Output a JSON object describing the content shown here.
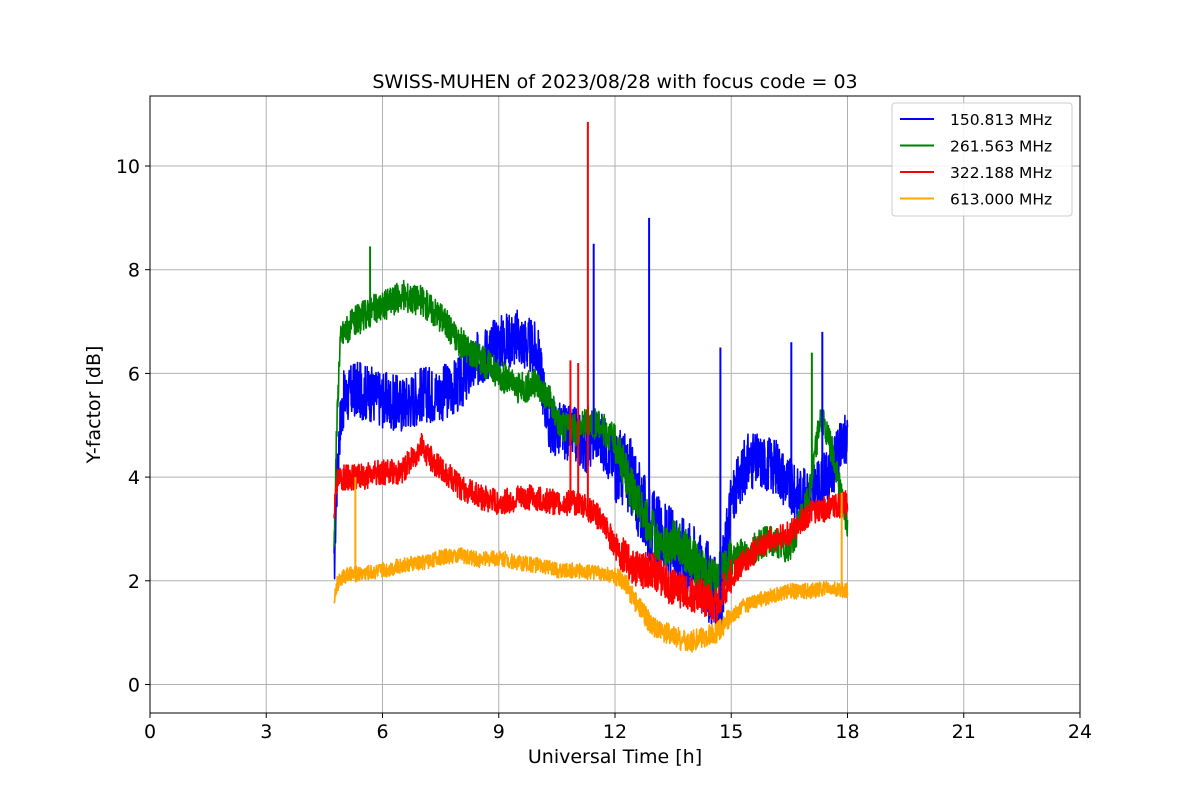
{
  "chart_data": {
    "type": "line",
    "title": "SWISS-MUHEN of 2023/08/28 with focus code = 03",
    "xlabel": "Universal Time [h]",
    "ylabel": "Y-factor [dB]",
    "xlim": [
      0,
      24
    ],
    "ylim": [
      -0.55,
      11.35
    ],
    "xticks": [
      0,
      3,
      6,
      9,
      12,
      15,
      18,
      21,
      24
    ],
    "yticks": [
      0,
      2,
      4,
      6,
      8,
      10
    ],
    "grid": true,
    "legend_position": "top-right",
    "series": [
      {
        "name": "150.813 MHz",
        "color": "#0000ff",
        "x": [
          4.75,
          4.8,
          4.9,
          5.0,
          5.3,
          5.7,
          6.0,
          6.5,
          7.0,
          7.5,
          8.0,
          8.5,
          9.0,
          9.5,
          10.0,
          10.3,
          10.6,
          11.0,
          11.3,
          11.5,
          12.0,
          12.4,
          12.8,
          13.2,
          13.6,
          14.0,
          14.4,
          14.7,
          15.0,
          15.4,
          15.8,
          16.2,
          16.6,
          17.0,
          17.5,
          18.0
        ],
        "y": [
          2.1,
          3.5,
          5.0,
          5.5,
          5.7,
          5.6,
          5.5,
          5.4,
          5.6,
          5.6,
          5.8,
          6.3,
          6.6,
          6.7,
          6.4,
          5.0,
          4.9,
          4.8,
          4.6,
          4.9,
          4.3,
          4.0,
          3.2,
          2.8,
          2.6,
          2.4,
          2.0,
          1.5,
          3.5,
          4.3,
          4.3,
          4.2,
          3.7,
          3.6,
          4.0,
          4.8
        ]
      },
      {
        "name": "261.563 MHz",
        "color": "#008000",
        "x": [
          4.75,
          4.8,
          4.9,
          5.0,
          5.3,
          5.7,
          6.0,
          6.5,
          7.0,
          7.5,
          8.0,
          8.5,
          9.0,
          9.5,
          10.0,
          10.3,
          10.6,
          11.0,
          11.3,
          11.6,
          12.0,
          12.4,
          12.8,
          13.2,
          13.6,
          14.0,
          14.5,
          14.8,
          15.0,
          15.5,
          16.0,
          16.5,
          17.0,
          17.3,
          17.6,
          18.0
        ],
        "y": [
          2.7,
          4.5,
          6.6,
          6.8,
          7.0,
          7.2,
          7.3,
          7.5,
          7.4,
          7.1,
          6.6,
          6.3,
          6.0,
          5.7,
          5.8,
          5.5,
          5.0,
          4.9,
          5.1,
          5.0,
          4.7,
          3.8,
          3.2,
          2.6,
          2.8,
          2.4,
          2.0,
          2.2,
          2.4,
          2.6,
          2.8,
          2.6,
          3.6,
          5.2,
          4.5,
          3.1
        ]
      },
      {
        "name": "322.188 MHz",
        "color": "#ff0000",
        "x": [
          4.75,
          4.8,
          4.9,
          5.0,
          5.5,
          6.0,
          6.5,
          7.0,
          7.3,
          7.6,
          8.0,
          8.3,
          8.6,
          9.0,
          9.5,
          10.0,
          10.5,
          11.0,
          11.3,
          11.6,
          12.0,
          12.3,
          12.6,
          13.0,
          13.4,
          13.8,
          14.2,
          14.6,
          15.0,
          15.5,
          16.0,
          16.5,
          17.0,
          17.5,
          18.0
        ],
        "y": [
          3.2,
          3.9,
          4.0,
          4.0,
          4.0,
          4.1,
          4.1,
          4.6,
          4.3,
          4.1,
          3.8,
          3.7,
          3.6,
          3.5,
          3.6,
          3.6,
          3.5,
          3.5,
          3.4,
          3.2,
          2.7,
          2.4,
          2.2,
          2.2,
          1.9,
          1.8,
          1.7,
          1.5,
          2.1,
          2.5,
          2.8,
          2.9,
          3.3,
          3.4,
          3.5
        ]
      },
      {
        "name": "613.000 MHz",
        "color": "#ffa500",
        "x": [
          4.75,
          4.8,
          4.9,
          5.0,
          5.5,
          6.0,
          6.5,
          7.0,
          7.5,
          8.0,
          8.5,
          9.0,
          9.5,
          10.0,
          10.5,
          11.0,
          11.5,
          12.0,
          12.3,
          12.6,
          13.0,
          13.3,
          13.6,
          13.9,
          14.2,
          14.6,
          15.0,
          15.3,
          15.6,
          16.0,
          16.5,
          17.0,
          17.5,
          18.0
        ],
        "y": [
          1.6,
          1.9,
          2.0,
          2.1,
          2.15,
          2.2,
          2.3,
          2.35,
          2.45,
          2.5,
          2.4,
          2.45,
          2.35,
          2.3,
          2.2,
          2.2,
          2.15,
          2.1,
          1.9,
          1.5,
          1.1,
          1.0,
          0.9,
          0.8,
          0.9,
          1.0,
          1.3,
          1.5,
          1.6,
          1.7,
          1.8,
          1.8,
          1.85,
          1.8
        ]
      }
    ],
    "spikes": [
      {
        "series": "150.813 MHz",
        "x": 11.45,
        "y": 8.5
      },
      {
        "series": "150.813 MHz",
        "x": 12.88,
        "y": 9.0
      },
      {
        "series": "150.813 MHz",
        "x": 14.72,
        "y": 6.5
      },
      {
        "series": "150.813 MHz",
        "x": 16.55,
        "y": 6.6
      },
      {
        "series": "150.813 MHz",
        "x": 17.35,
        "y": 6.8
      },
      {
        "series": "261.563 MHz",
        "x": 5.68,
        "y": 8.45
      },
      {
        "series": "261.563 MHz",
        "x": 17.08,
        "y": 6.4
      },
      {
        "series": "322.188 MHz",
        "x": 11.3,
        "y": 10.85
      },
      {
        "series": "322.188 MHz",
        "x": 10.85,
        "y": 6.25
      },
      {
        "series": "322.188 MHz",
        "x": 11.05,
        "y": 6.2
      },
      {
        "series": "613.000 MHz",
        "x": 5.3,
        "y": 4.0
      },
      {
        "series": "613.000 MHz",
        "x": 17.85,
        "y": 3.7
      }
    ]
  }
}
